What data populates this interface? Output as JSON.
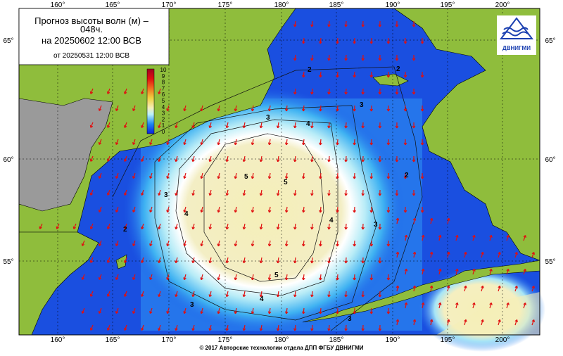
{
  "header": {
    "title_line1": "Прогноз высоты волн (м) –",
    "title_line2": "048ч.",
    "valid": "на 20250602 12:00 ВСВ",
    "issued": "от 20250531 12:00 ВСВ"
  },
  "colorbar": {
    "labels": [
      "10",
      "9",
      "8",
      "7",
      "6",
      "5",
      "4",
      "3",
      "2",
      "1",
      "0"
    ]
  },
  "axes": {
    "lon_labels": [
      "160°",
      "165°",
      "170°",
      "175°",
      "180°",
      "185°",
      "190°",
      "195°",
      "200°"
    ],
    "lat_labels": [
      "65°",
      "60°",
      "55°"
    ]
  },
  "logo": {
    "text": "ДВНИГМИ"
  },
  "contour_labels": [
    "2",
    "2",
    "2",
    "2",
    "3",
    "3",
    "3",
    "3",
    "3",
    "3",
    "4",
    "4",
    "4",
    "4",
    "5",
    "5",
    "5"
  ],
  "footer": "© 2017 Авторские технологии отдела ДПП ФГБУ ДВНИГМИ"
}
